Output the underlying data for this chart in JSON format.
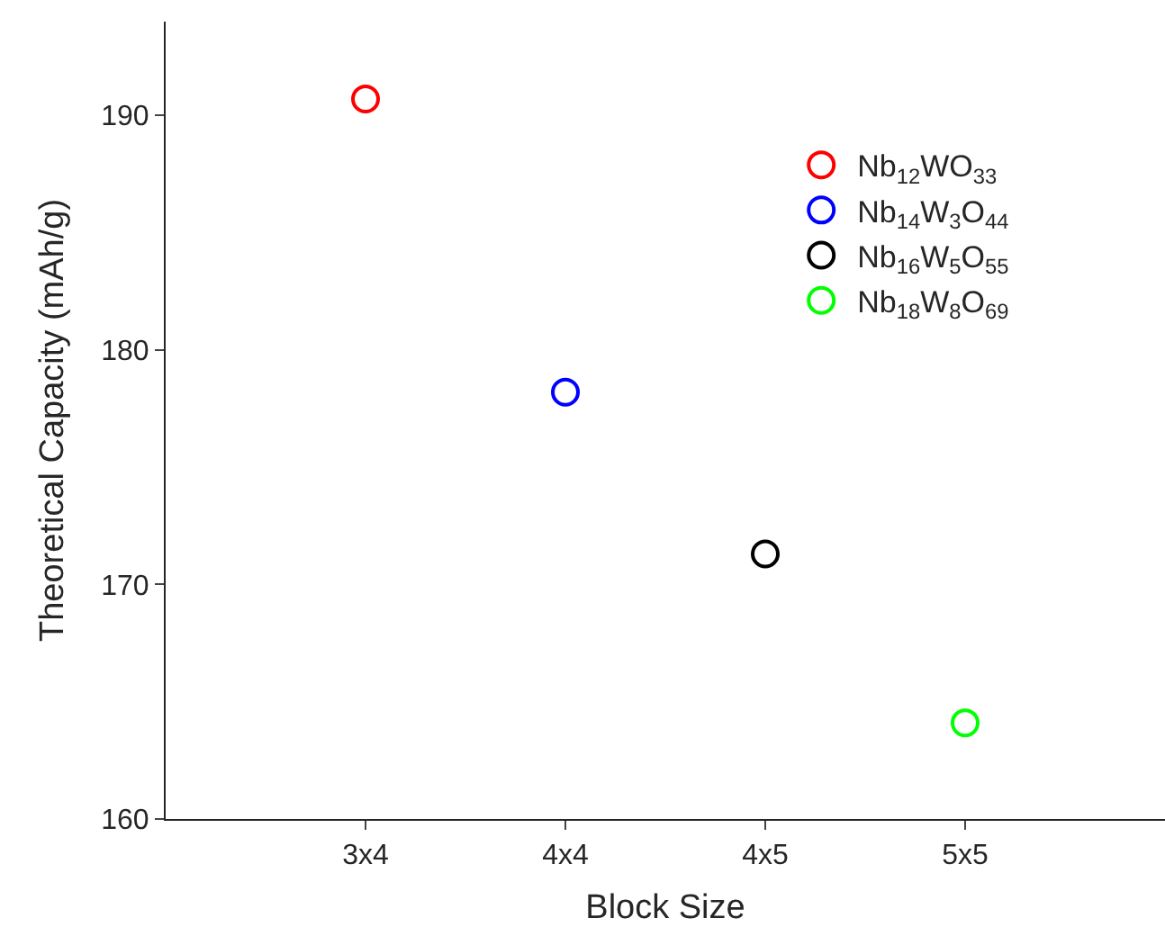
{
  "chart_data": {
    "type": "scatter",
    "xlabel": "Block Size",
    "ylabel": "Theoretical Capacity (mAh/g)",
    "categories": [
      "3x4",
      "4x4",
      "4x5",
      "5x5"
    ],
    "series": [
      {
        "name": "Nb$_{12}$WO$_{33}$",
        "color": "#ff0000",
        "values": [
          190.7,
          null,
          null,
          null
        ]
      },
      {
        "name": "Nb$_{14}$W$_{3}$O$_{44}$",
        "color": "#0000ff",
        "values": [
          null,
          178.2,
          null,
          null
        ]
      },
      {
        "name": "Nb$_{16}$W$_{5}$O$_{55}$",
        "color": "#000000",
        "values": [
          null,
          null,
          171.3,
          null
        ]
      },
      {
        "name": "Nb$_{18}$W$_{8}$O$_{69}$",
        "color": "#00ff00",
        "values": [
          null,
          null,
          null,
          164.1
        ]
      }
    ],
    "ylim": [
      160,
      194
    ],
    "yticks": [
      160,
      170,
      180,
      190
    ],
    "legend": "top right",
    "marker": "circle"
  }
}
